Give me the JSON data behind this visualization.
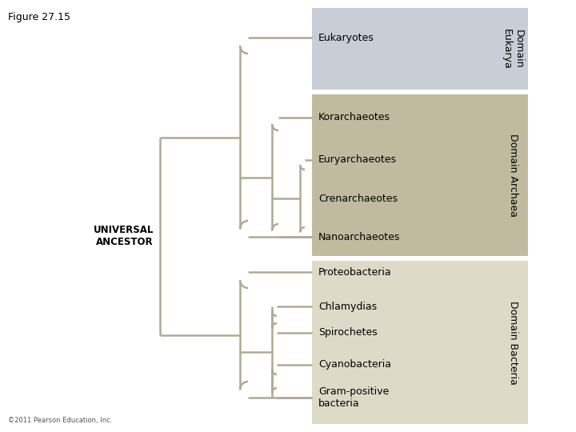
{
  "title": "Figure 27.15",
  "copyright": "©2011 Pearson Education, Inc.",
  "line_color": "#b0aa94",
  "line_width": 1.8,
  "bg_color": "#ffffff",
  "domain_eukarya_color": "#c8cdd6",
  "domain_archaea_color": "#c0bb9f",
  "domain_bacteria_color": "#dddac8",
  "domain_label_eukarya": "Domain\nEukarya",
  "domain_label_archaea": "Domain Archaea",
  "domain_label_bacteria": "Domain Bacteria",
  "universal_ancestor": "UNIVERSAL\nANCESTOR",
  "taxa_order": [
    "Eukaryotes",
    "Korarchaeotes",
    "Euryarchaeotes",
    "Crenarchaeotes",
    "Nanoarchaeotes",
    "Proteobacteria",
    "Chlamydias",
    "Spirochetes",
    "Cyanobacteria",
    "Gram-positive\nbacteria"
  ],
  "taxa_domains": {
    "Eukaryotes": "eukarya",
    "Korarchaeotes": "archaea",
    "Euryarchaeotes": "archaea",
    "Crenarchaeotes": "archaea",
    "Nanoarchaeotes": "archaea",
    "Proteobacteria": "bacteria",
    "Chlamydias": "bacteria",
    "Spirochetes": "bacteria",
    "Cyanobacteria": "bacteria",
    "Gram-positive\nbacteria": "bacteria"
  },
  "font_size_taxa": 9,
  "font_size_domain": 9,
  "font_size_title": 9,
  "font_size_ancestor": 8.5,
  "font_size_copyright": 6
}
